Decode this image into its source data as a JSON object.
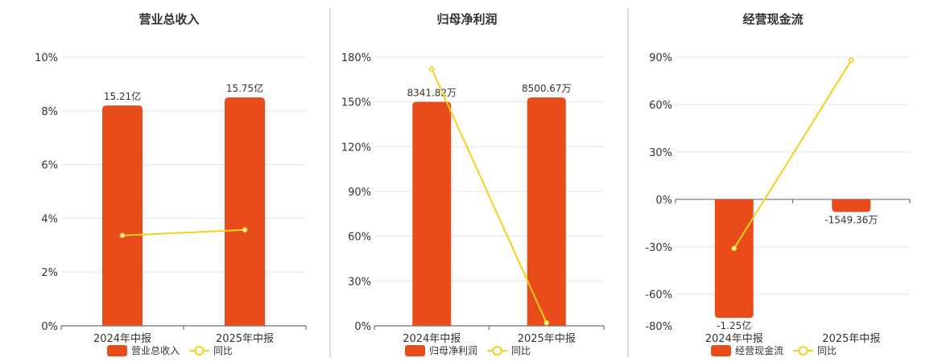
{
  "colors": {
    "bar": "#e84c1b",
    "line": "#f5d01c",
    "grid": "#e3e6ee",
    "axis": "#6e7079",
    "separator": "#bfbfbf"
  },
  "legend_icons": {
    "bar": "rounded-rect",
    "line": "line-with-circle"
  },
  "chart_data": [
    {
      "type": "bar",
      "title": "营业总收入",
      "categories": [
        "2024年中报",
        "2025年中报"
      ],
      "series": [
        {
          "name": "营业总收入",
          "type": "bar",
          "values": [
            8.2,
            8.5
          ],
          "labels": [
            "15.21亿",
            "15.75亿"
          ]
        },
        {
          "name": "同比",
          "type": "line",
          "values": [
            3.36,
            3.57
          ]
        }
      ],
      "ylim": [
        0,
        10
      ],
      "yticks": [
        0,
        2,
        4,
        6,
        8,
        10
      ],
      "ytick_labels": [
        "0%",
        "2%",
        "4%",
        "6%",
        "8%",
        "10%"
      ],
      "grid": true,
      "legend": "bottom"
    },
    {
      "type": "bar",
      "title": "归母净利润",
      "categories": [
        "2024年中报",
        "2025年中报"
      ],
      "series": [
        {
          "name": "归母净利润",
          "type": "bar",
          "values": [
            150,
            153
          ],
          "labels": [
            "8341.82万",
            "8500.67万"
          ]
        },
        {
          "name": "同比",
          "type": "line",
          "values": [
            172,
            2
          ]
        }
      ],
      "ylim": [
        0,
        180
      ],
      "yticks": [
        0,
        30,
        60,
        90,
        120,
        150,
        180
      ],
      "ytick_labels": [
        "0%",
        "30%",
        "60%",
        "90%",
        "120%",
        "150%",
        "180%"
      ],
      "grid": true,
      "legend": "bottom"
    },
    {
      "type": "bar",
      "title": "经营现金流",
      "categories": [
        "2024年中报",
        "2025年中报"
      ],
      "series": [
        {
          "name": "经营现金流",
          "type": "bar",
          "values": [
            -75,
            -8
          ],
          "labels": [
            "-1.25亿",
            "-1549.36万"
          ]
        },
        {
          "name": "同比",
          "type": "line",
          "values": [
            -31,
            88
          ]
        }
      ],
      "ylim": [
        -80,
        90
      ],
      "yticks": [
        -80,
        -60,
        -30,
        0,
        30,
        60,
        90
      ],
      "ytick_labels": [
        "-80%",
        "-60%",
        "-30%",
        "0%",
        "30%",
        "60%",
        "90%"
      ],
      "grid": true,
      "legend": "bottom"
    }
  ]
}
